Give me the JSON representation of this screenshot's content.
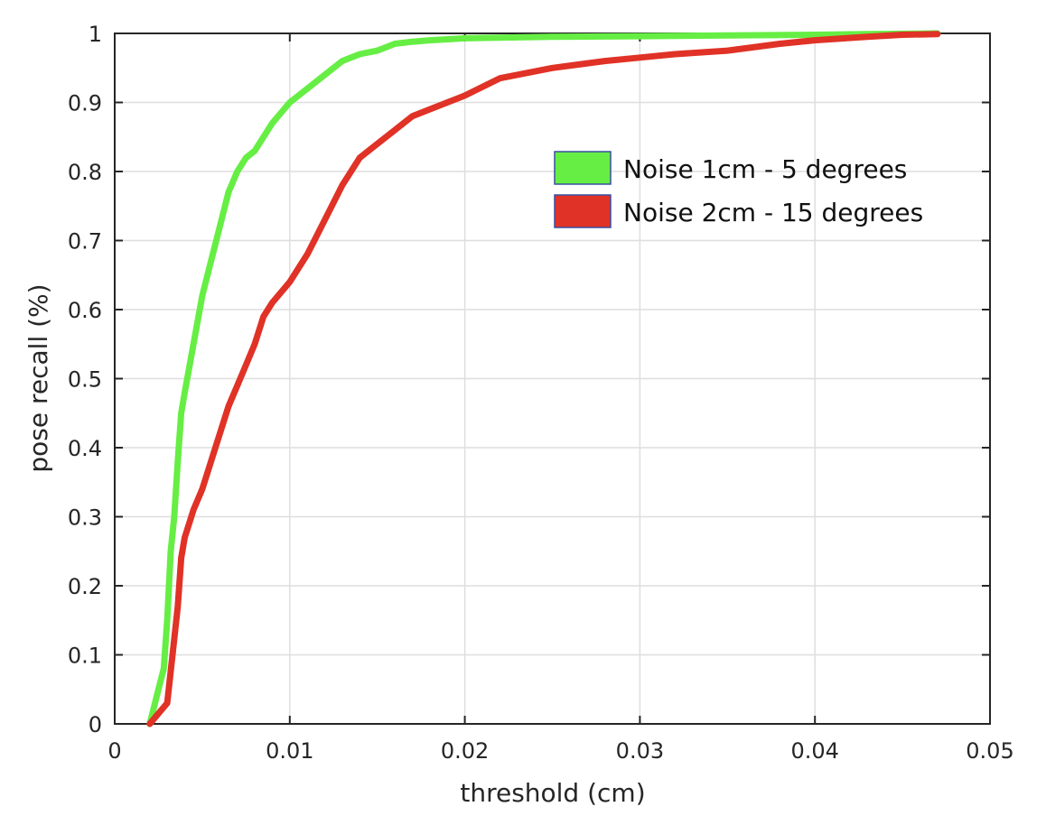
{
  "chart_data": {
    "type": "line",
    "title": "",
    "xlabel": "threshold (cm)",
    "ylabel": "pose recall (%)",
    "xlim": [
      0,
      0.05
    ],
    "ylim": [
      0,
      1
    ],
    "xticks": [
      0,
      0.01,
      0.02,
      0.03,
      0.04,
      0.05
    ],
    "xtick_labels": [
      "0",
      "0.01",
      "0.02",
      "0.03",
      "0.04",
      "0.05"
    ],
    "yticks": [
      0,
      0.1,
      0.2,
      0.3,
      0.4,
      0.5,
      0.6,
      0.7,
      0.8,
      0.9,
      1
    ],
    "ytick_labels": [
      "0",
      "0.1",
      "0.2",
      "0.3",
      "0.4",
      "0.5",
      "0.6",
      "0.7",
      "0.8",
      "0.9",
      "1"
    ],
    "grid": true,
    "legend_position": "right",
    "series": [
      {
        "name": "Noise 1cm - 5 degrees",
        "color": "#66ee44",
        "x": [
          0.002,
          0.0025,
          0.0028,
          0.003,
          0.0032,
          0.0034,
          0.0036,
          0.0038,
          0.004,
          0.0045,
          0.005,
          0.0055,
          0.006,
          0.0065,
          0.007,
          0.0075,
          0.008,
          0.009,
          0.01,
          0.011,
          0.012,
          0.013,
          0.014,
          0.015,
          0.016,
          0.017,
          0.018,
          0.02,
          0.025,
          0.03,
          0.035,
          0.04,
          0.043,
          0.047
        ],
        "y": [
          0,
          0.05,
          0.08,
          0.15,
          0.25,
          0.3,
          0.38,
          0.45,
          0.48,
          0.55,
          0.62,
          0.67,
          0.72,
          0.77,
          0.8,
          0.82,
          0.83,
          0.87,
          0.9,
          0.92,
          0.94,
          0.96,
          0.97,
          0.975,
          0.985,
          0.988,
          0.99,
          0.993,
          0.995,
          0.996,
          0.997,
          0.998,
          0.999,
          1
        ]
      },
      {
        "name": "Noise 2cm - 15 degrees",
        "color": "#e03226",
        "x": [
          0.002,
          0.0025,
          0.003,
          0.0033,
          0.0036,
          0.0038,
          0.004,
          0.0045,
          0.005,
          0.0055,
          0.006,
          0.0065,
          0.007,
          0.0075,
          0.008,
          0.0085,
          0.009,
          0.01,
          0.011,
          0.012,
          0.013,
          0.0135,
          0.014,
          0.015,
          0.016,
          0.017,
          0.018,
          0.019,
          0.02,
          0.022,
          0.025,
          0.028,
          0.03,
          0.032,
          0.035,
          0.038,
          0.04,
          0.043,
          0.045,
          0.047
        ],
        "y": [
          0,
          0.015,
          0.03,
          0.1,
          0.17,
          0.24,
          0.27,
          0.31,
          0.34,
          0.38,
          0.42,
          0.46,
          0.49,
          0.52,
          0.55,
          0.59,
          0.61,
          0.64,
          0.68,
          0.73,
          0.78,
          0.8,
          0.82,
          0.84,
          0.86,
          0.88,
          0.89,
          0.9,
          0.91,
          0.935,
          0.95,
          0.96,
          0.965,
          0.97,
          0.975,
          0.985,
          0.99,
          0.995,
          0.998,
          0.999
        ]
      }
    ]
  }
}
